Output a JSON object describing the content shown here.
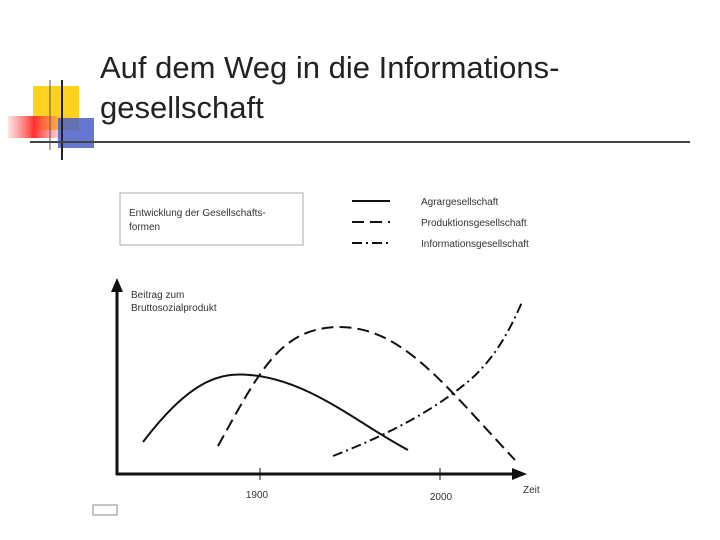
{
  "slide": {
    "title_lines": [
      "Auf dem Weg in die Informations-",
      "gesellschaft"
    ],
    "figure": {
      "box_lines": [
        "Entwicklung der Gesellschafts-",
        "formen"
      ],
      "legend": [
        "Agrargesellschaft",
        "Produktionsgesellschaft",
        "Informationsgesellschaft"
      ],
      "y_label_lines": [
        "Beitrag zum",
        "Bruttosozialprodukt"
      ],
      "x_label": "Zeit",
      "x_ticks": [
        "1900",
        "2000"
      ]
    }
  }
}
